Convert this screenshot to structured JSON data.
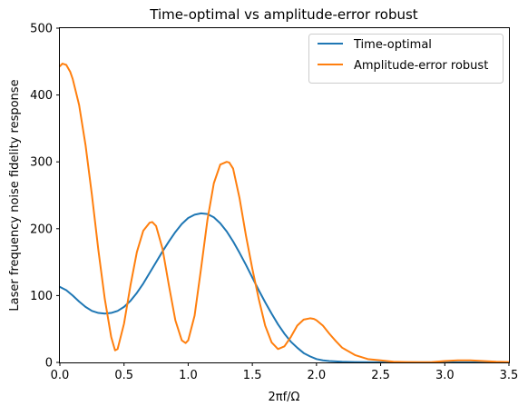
{
  "chart_data": {
    "type": "line",
    "title": "Time-optimal vs amplitude-error robust",
    "xlabel": "2πf/Ω",
    "ylabel": "Laser frequency noise fidelity response",
    "xlim": [
      0,
      3.5
    ],
    "ylim": [
      0,
      500
    ],
    "xticks": [
      0.0,
      0.5,
      1.0,
      1.5,
      2.0,
      2.5,
      3.0,
      3.5
    ],
    "xtick_labels": [
      "0.0",
      "0.5",
      "1.0",
      "1.5",
      "2.0",
      "2.5",
      "3.0",
      "3.5"
    ],
    "yticks": [
      0,
      100,
      200,
      300,
      400,
      500
    ],
    "ytick_labels": [
      "0",
      "100",
      "200",
      "300",
      "400",
      "500"
    ],
    "grid": false,
    "legend_position": "top-right",
    "series": [
      {
        "name": "Time-optimal",
        "color": "#1f77b4",
        "x": [
          0.0,
          0.05,
          0.1,
          0.15,
          0.2,
          0.25,
          0.3,
          0.35,
          0.4,
          0.45,
          0.5,
          0.55,
          0.6,
          0.65,
          0.7,
          0.75,
          0.8,
          0.85,
          0.9,
          0.95,
          1.0,
          1.05,
          1.1,
          1.15,
          1.2,
          1.25,
          1.3,
          1.35,
          1.4,
          1.45,
          1.5,
          1.55,
          1.6,
          1.65,
          1.7,
          1.75,
          1.8,
          1.85,
          1.9,
          1.95,
          2.0,
          2.05,
          2.1,
          2.2,
          2.3,
          2.4,
          2.5,
          2.7,
          3.0,
          3.2,
          3.5
        ],
        "y": [
          113,
          108,
          100,
          91,
          83,
          77,
          74,
          73,
          74,
          77,
          83,
          92,
          104,
          118,
          134,
          150,
          166,
          181,
          195,
          207,
          216,
          221,
          223,
          222,
          217,
          208,
          196,
          181,
          164,
          146,
          127,
          108,
          90,
          73,
          57,
          43,
          31,
          22,
          14,
          9,
          5,
          3,
          2,
          1,
          0.5,
          0.3,
          0.2,
          0.1,
          0.1,
          0.1,
          0.1
        ]
      },
      {
        "name": "Amplitude-error robust",
        "color": "#ff7f0e",
        "x": [
          0.0,
          0.02,
          0.05,
          0.08,
          0.1,
          0.15,
          0.2,
          0.25,
          0.3,
          0.35,
          0.4,
          0.43,
          0.45,
          0.5,
          0.55,
          0.6,
          0.65,
          0.7,
          0.72,
          0.75,
          0.8,
          0.85,
          0.9,
          0.95,
          0.98,
          1.0,
          1.05,
          1.1,
          1.15,
          1.2,
          1.25,
          1.3,
          1.32,
          1.35,
          1.4,
          1.45,
          1.5,
          1.55,
          1.6,
          1.65,
          1.7,
          1.75,
          1.8,
          1.85,
          1.9,
          1.95,
          1.98,
          2.0,
          2.05,
          2.1,
          2.15,
          2.2,
          2.3,
          2.4,
          2.5,
          2.6,
          2.7,
          2.8,
          2.9,
          3.0,
          3.1,
          3.15,
          3.2,
          3.3,
          3.4,
          3.5
        ],
        "y": [
          443,
          447,
          445,
          435,
          424,
          385,
          325,
          250,
          168,
          95,
          38,
          18,
          20,
          58,
          115,
          165,
          197,
          209,
          210,
          204,
          170,
          115,
          63,
          33,
          29,
          33,
          70,
          140,
          213,
          268,
          296,
          300,
          299,
          290,
          246,
          190,
          140,
          95,
          55,
          30,
          20,
          24,
          38,
          55,
          64,
          66,
          65,
          63,
          55,
          43,
          32,
          22,
          11,
          5,
          3,
          1,
          0.5,
          0.3,
          0.5,
          2,
          3,
          3,
          3,
          2,
          1,
          0.5
        ]
      }
    ]
  }
}
